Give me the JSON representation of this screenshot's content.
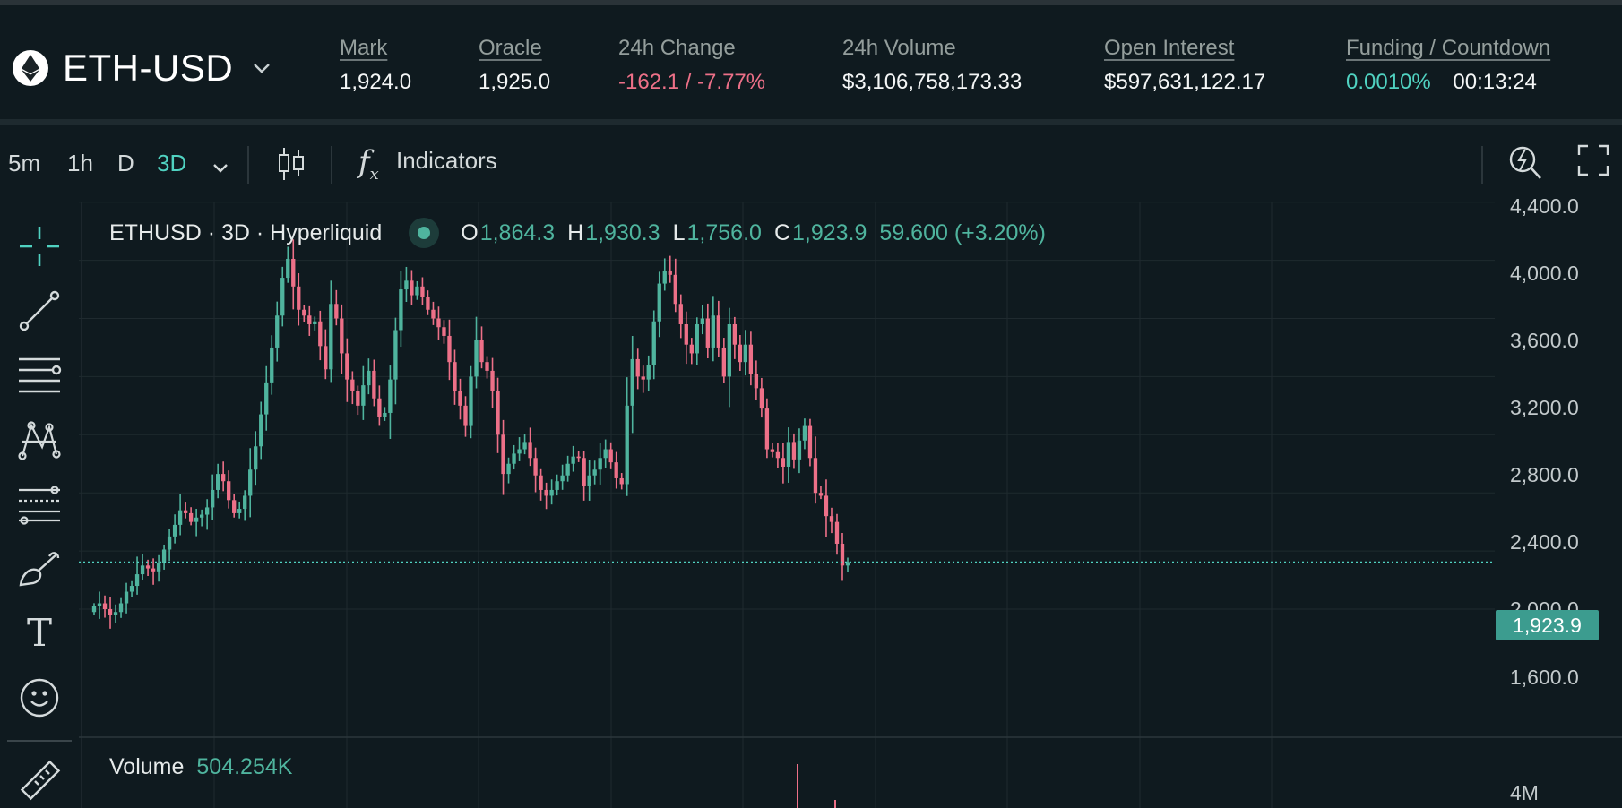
{
  "header": {
    "coin": {
      "symbol": "ETH-USD",
      "icon": "ethereum-icon"
    },
    "stats": {
      "mark": {
        "label": "Mark",
        "value": "1,924.0"
      },
      "oracle": {
        "label": "Oracle",
        "value": "1,925.0"
      },
      "change": {
        "label": "24h Change",
        "value": "-162.1 / -7.77%"
      },
      "volume": {
        "label": "24h Volume",
        "value": "$3,106,758,173.33"
      },
      "oi": {
        "label": "Open Interest",
        "value": "$597,631,122.17"
      },
      "funding": {
        "label": "Funding / Countdown",
        "rate": "0.0010%",
        "countdown": "00:13:24"
      }
    }
  },
  "toolbar": {
    "intervals": [
      "5m",
      "1h",
      "D",
      "3D"
    ],
    "active_interval": "3D",
    "indicators_label": "Indicators",
    "fx_symbol": "f",
    "fx_sub": "x"
  },
  "tools": [
    "crosshair-icon",
    "trend-line-icon",
    "horizontal-lines-icon",
    "pattern-icon",
    "fib-icon",
    "brush-icon",
    "text-icon",
    "emoji-icon",
    "ruler-icon"
  ],
  "tools_text_glyph": "T",
  "legend": {
    "symbol": "ETHUSD · 3D · Hyperliquid",
    "o_label": "O",
    "o": "1,864.3",
    "h_label": "H",
    "h": "1,930.3",
    "l_label": "L",
    "l": "1,756.0",
    "c_label": "C",
    "c": "1,923.9",
    "change": "59.600 (+3.20%)"
  },
  "volume_legend": {
    "label": "Volume",
    "value": "504.254K"
  },
  "y_ticks": [
    "4,400.0",
    "4,000.0",
    "3,600.0",
    "3,200.0",
    "2,800.0",
    "2,400.0",
    "2,000.0",
    "1,600.0"
  ],
  "volume_tick": "4M",
  "last_price": "1,923.9",
  "colors": {
    "up": "#4fb49e",
    "down": "#ed7088",
    "accent": "#50d2c1",
    "bg": "#0f1a1f"
  },
  "chart_data": {
    "type": "candlestick",
    "interval": "3D",
    "last_price": 1923.9,
    "y_range": [
      1500,
      4450
    ],
    "closes": [
      1620,
      1640,
      1600,
      1560,
      1580,
      1640,
      1720,
      1760,
      1840,
      1900,
      1880,
      1860,
      1920,
      2010,
      2100,
      2180,
      2280,
      2260,
      2200,
      2230,
      2250,
      2300,
      2420,
      2530,
      2480,
      2350,
      2260,
      2290,
      2380,
      2560,
      2720,
      2940,
      3160,
      3400,
      3620,
      3880,
      4010,
      3820,
      3660,
      3620,
      3560,
      3580,
      3410,
      3250,
      3700,
      3600,
      3360,
      3180,
      3100,
      3000,
      3140,
      3240,
      3050,
      2920,
      2950,
      3180,
      3520,
      3800,
      3860,
      3760,
      3820,
      3750,
      3660,
      3600,
      3540,
      3480,
      3300,
      3100,
      3000,
      2860,
      3200,
      3450,
      3300,
      3240,
      3100,
      2800,
      2530,
      2600,
      2670,
      2700,
      2750,
      2640,
      2520,
      2420,
      2380,
      2420,
      2480,
      2520,
      2600,
      2650,
      2640,
      2450,
      2520,
      2560,
      2640,
      2700,
      2610,
      2500,
      2460,
      3000,
      3320,
      3200,
      3180,
      3280,
      3580,
      3840,
      3930,
      3900,
      3700,
      3560,
      3420,
      3360,
      3560,
      3600,
      3400,
      3620,
      3400,
      3200,
      3560,
      3420,
      3300,
      3420,
      3220,
      3120,
      2980,
      2700,
      2680,
      2640,
      2580,
      2750,
      2630,
      2760,
      2860,
      2640,
      2400,
      2380,
      2240,
      2200,
      2050,
      1900,
      1923.9
    ],
    "volume_axis": "4M"
  }
}
